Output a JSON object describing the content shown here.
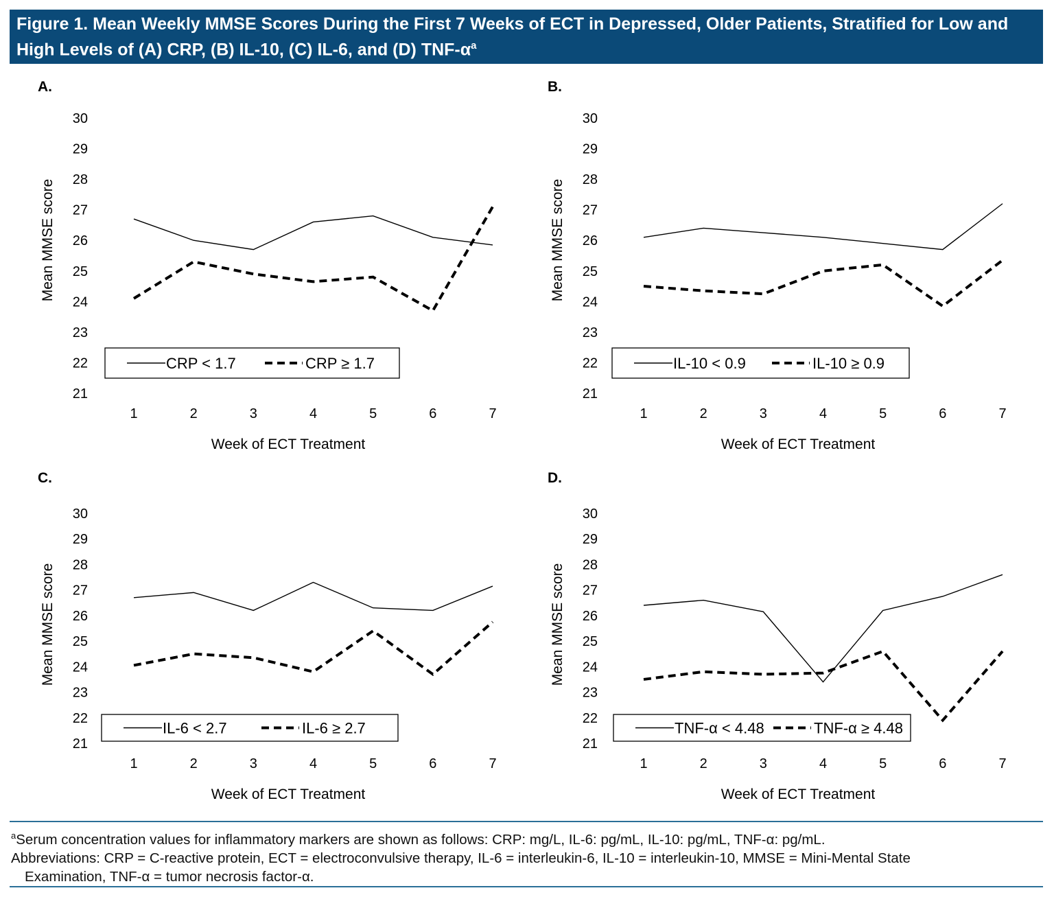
{
  "figure_title": "Figure 1. Mean Weekly MMSE Scores During the First 7 Weeks of ECT in Depressed, Older Patients, Stratified for Low and High Levels of (A) CRP, (B) IL-10, (C) IL-6, and (D) TNF-α",
  "figure_title_sup": "a",
  "footnote_sup": "a",
  "footnote": "Serum concentration values for inflammatory markers are shown as follows: CRP: mg/L, IL-6: pg/mL, IL-10: pg/mL, TNF-α: pg/mL.",
  "abbreviations_1": "Abbreviations: CRP = C-reactive protein, ECT = electroconvulsive therapy, IL-6 = interleukin-6, IL-10 = interleukin-10, MMSE = Mini-Mental State",
  "abbreviations_2": "Examination, TNF-α = tumor necrosis factor-α.",
  "colors": {
    "header": "#0b4a78",
    "rule": "#2a6f97",
    "line": "#000000"
  },
  "chart_data": [
    {
      "type": "line",
      "panel": "A.",
      "xlabel": "Week of ECT Treatment",
      "ylabel": "Mean MMSE score",
      "ylim": [
        21,
        30
      ],
      "x": [
        1,
        2,
        3,
        4,
        5,
        6,
        7
      ],
      "yticks": [
        21,
        22,
        23,
        24,
        25,
        26,
        27,
        28,
        29,
        30
      ],
      "grid": false,
      "legend": "bottom-left, boxed",
      "series": [
        {
          "name": "CRP < 1.7",
          "style": "solid",
          "values": [
            26.7,
            26.0,
            25.7,
            26.6,
            26.8,
            26.1,
            25.85
          ]
        },
        {
          "name": "CRP ≥ 1.7",
          "style": "dashed",
          "values": [
            24.1,
            25.3,
            24.9,
            24.65,
            24.8,
            23.7,
            27.1
          ]
        }
      ]
    },
    {
      "type": "line",
      "panel": "B.",
      "xlabel": "Week of ECT Treatment",
      "ylabel": "Mean MMSE score",
      "ylim": [
        21,
        30
      ],
      "x": [
        1,
        2,
        3,
        4,
        5,
        6,
        7
      ],
      "yticks": [
        21,
        22,
        23,
        24,
        25,
        26,
        27,
        28,
        29,
        30
      ],
      "grid": false,
      "legend": "bottom-left, boxed",
      "series": [
        {
          "name": "IL-10 < 0.9",
          "style": "solid",
          "values": [
            26.1,
            26.4,
            26.25,
            26.1,
            25.9,
            25.7,
            27.2
          ]
        },
        {
          "name": "IL-10 ≥ 0.9",
          "style": "dashed",
          "values": [
            24.5,
            24.35,
            24.25,
            25.0,
            25.2,
            23.85,
            25.35
          ]
        }
      ]
    },
    {
      "type": "line",
      "panel": "C.",
      "xlabel": "Week of ECT Treatment",
      "ylabel": "Mean MMSE score",
      "ylim": [
        21,
        30
      ],
      "x": [
        1,
        2,
        3,
        4,
        5,
        6,
        7
      ],
      "yticks": [
        21,
        22,
        23,
        24,
        25,
        26,
        27,
        28,
        29,
        30
      ],
      "grid": false,
      "legend": "bottom-left, boxed",
      "series": [
        {
          "name": "IL-6 < 2.7",
          "style": "solid",
          "values": [
            26.7,
            26.9,
            26.2,
            27.3,
            26.3,
            26.2,
            27.15
          ]
        },
        {
          "name": "IL-6 ≥ 2.7",
          "style": "dashed",
          "values": [
            24.05,
            24.5,
            24.35,
            23.8,
            25.4,
            23.7,
            25.75
          ]
        }
      ]
    },
    {
      "type": "line",
      "panel": "D.",
      "xlabel": "Week of ECT Treatment",
      "ylabel": "Mean MMSE score",
      "ylim": [
        21,
        30
      ],
      "x": [
        1,
        2,
        3,
        4,
        5,
        6,
        7
      ],
      "yticks": [
        21,
        22,
        23,
        24,
        25,
        26,
        27,
        28,
        29,
        30
      ],
      "grid": false,
      "legend": "bottom-left, boxed",
      "series": [
        {
          "name": "TNF-α < 4.48",
          "style": "solid",
          "values": [
            26.4,
            26.6,
            26.15,
            23.4,
            26.2,
            26.75,
            27.6
          ]
        },
        {
          "name": "TNF-α ≥ 4.48",
          "style": "dashed",
          "values": [
            23.5,
            23.8,
            23.7,
            23.75,
            24.6,
            21.9,
            24.6
          ]
        }
      ]
    }
  ]
}
